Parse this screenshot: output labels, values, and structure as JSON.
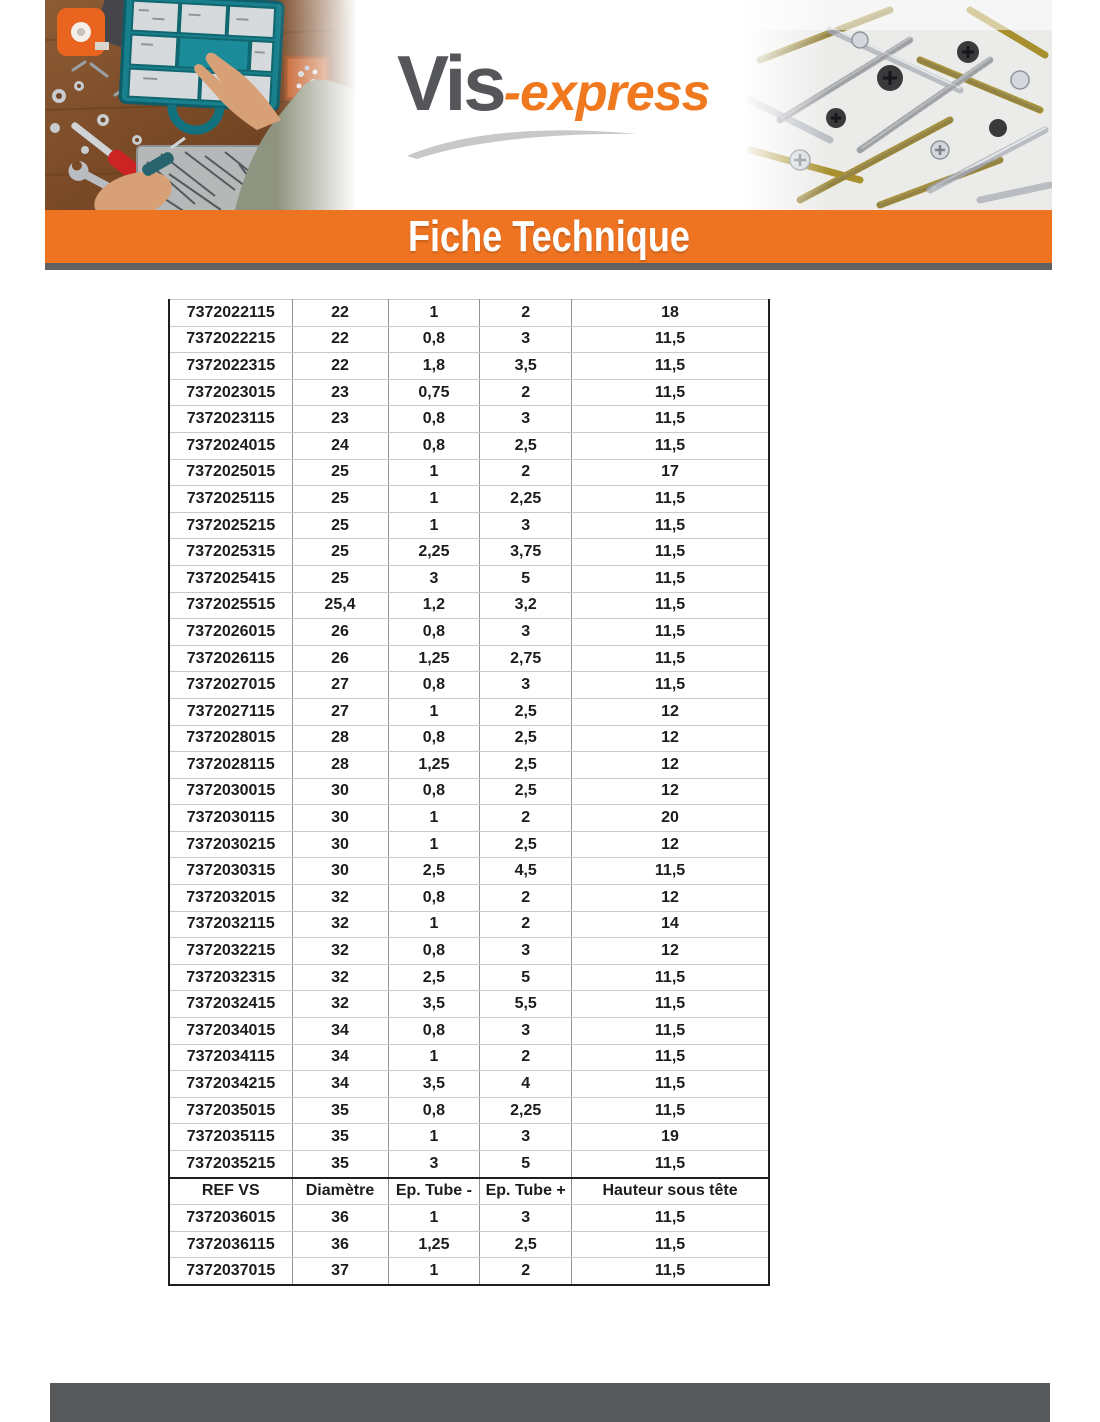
{
  "logo": {
    "vis": "Vis",
    "express": "-express"
  },
  "banner": {
    "title": "Fiche Technique"
  },
  "colors": {
    "banner_orange": "#ee7422",
    "logo_gray": "#55565a",
    "logo_orange": "#f0791f",
    "footer_gray": "#58595b",
    "banner_underline_gray": "#616163"
  },
  "table": {
    "columns": [
      "REF VS",
      "Diamètre",
      "Ep. Tube -",
      "Ep. Tube +",
      "Hauteur sous tête"
    ],
    "sections": [
      {
        "header": false,
        "rows": [
          [
            "7372022115",
            "22",
            "1",
            "2",
            "18"
          ],
          [
            "7372022215",
            "22",
            "0,8",
            "3",
            "11,5"
          ],
          [
            "7372022315",
            "22",
            "1,8",
            "3,5",
            "11,5"
          ],
          [
            "7372023015",
            "23",
            "0,75",
            "2",
            "11,5"
          ],
          [
            "7372023115",
            "23",
            "0,8",
            "3",
            "11,5"
          ],
          [
            "7372024015",
            "24",
            "0,8",
            "2,5",
            "11,5"
          ],
          [
            "7372025015",
            "25",
            "1",
            "2",
            "17"
          ],
          [
            "7372025115",
            "25",
            "1",
            "2,25",
            "11,5"
          ],
          [
            "7372025215",
            "25",
            "1",
            "3",
            "11,5"
          ],
          [
            "7372025315",
            "25",
            "2,25",
            "3,75",
            "11,5"
          ],
          [
            "7372025415",
            "25",
            "3",
            "5",
            "11,5"
          ],
          [
            "7372025515",
            "25,4",
            "1,2",
            "3,2",
            "11,5"
          ],
          [
            "7372026015",
            "26",
            "0,8",
            "3",
            "11,5"
          ],
          [
            "7372026115",
            "26",
            "1,25",
            "2,75",
            "11,5"
          ],
          [
            "7372027015",
            "27",
            "0,8",
            "3",
            "11,5"
          ],
          [
            "7372027115",
            "27",
            "1",
            "2,5",
            "12"
          ],
          [
            "7372028015",
            "28",
            "0,8",
            "2,5",
            "12"
          ],
          [
            "7372028115",
            "28",
            "1,25",
            "2,5",
            "12"
          ],
          [
            "7372030015",
            "30",
            "0,8",
            "2,5",
            "12"
          ],
          [
            "7372030115",
            "30",
            "1",
            "2",
            "20"
          ],
          [
            "7372030215",
            "30",
            "1",
            "2,5",
            "12"
          ],
          [
            "7372030315",
            "30",
            "2,5",
            "4,5",
            "11,5"
          ],
          [
            "7372032015",
            "32",
            "0,8",
            "2",
            "12"
          ],
          [
            "7372032115",
            "32",
            "1",
            "2",
            "14"
          ],
          [
            "7372032215",
            "32",
            "0,8",
            "3",
            "12"
          ],
          [
            "7372032315",
            "32",
            "2,5",
            "5",
            "11,5"
          ],
          [
            "7372032415",
            "32",
            "3,5",
            "5,5",
            "11,5"
          ],
          [
            "7372034015",
            "34",
            "0,8",
            "3",
            "11,5"
          ],
          [
            "7372034115",
            "34",
            "1",
            "2",
            "11,5"
          ],
          [
            "7372034215",
            "34",
            "3,5",
            "4",
            "11,5"
          ],
          [
            "7372035015",
            "35",
            "0,8",
            "2,25",
            "11,5"
          ],
          [
            "7372035115",
            "35",
            "1",
            "3",
            "19"
          ],
          [
            "7372035215",
            "35",
            "3",
            "5",
            "11,5"
          ]
        ]
      },
      {
        "header": true,
        "rows": [
          [
            "7372036015",
            "36",
            "1",
            "3",
            "11,5"
          ],
          [
            "7372036115",
            "36",
            "1,25",
            "2,5",
            "11,5"
          ],
          [
            "7372037015",
            "37",
            "1",
            "2",
            "11,5"
          ]
        ]
      }
    ]
  }
}
